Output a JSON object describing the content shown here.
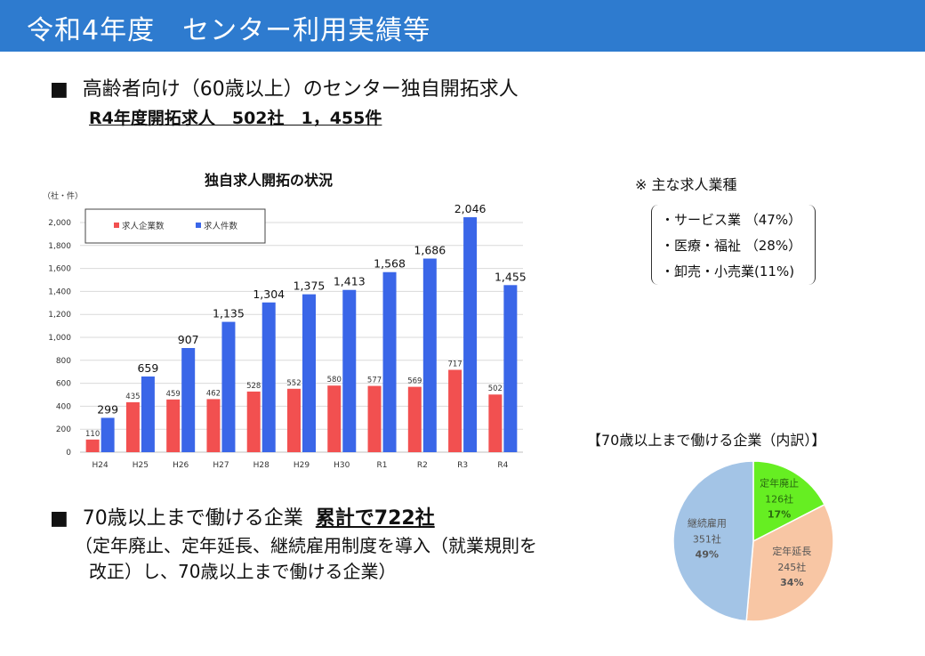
{
  "header": {
    "title": "令和4年度　センター利用実績等"
  },
  "section1": {
    "bullet": "■",
    "heading": "高齢者向け（60歳以上）のセンター独自開拓求人",
    "subheading": "R4年度開拓求人　502社　1，455件"
  },
  "notes": {
    "title": "※ 主な求人業種",
    "items": [
      "・サービス業 （47%）",
      "・医療・福祉 （28%）",
      "・卸売・小売業(11%)"
    ]
  },
  "section2": {
    "bullet": "■",
    "heading": "70歳以上まで働ける企業",
    "emphasis": "累計で722社",
    "desc_line1": "（定年廃止、定年延長、継続雇用制度を導入（就業規則を",
    "desc_line2": "改正）し、70歳以上まで働ける企業）"
  },
  "chart_data": [
    {
      "type": "bar",
      "title": "独自求人開拓の状況",
      "ylabel": "（社・件）",
      "categories": [
        "H24",
        "H25",
        "H26",
        "H27",
        "H28",
        "H29",
        "H30",
        "R1",
        "R2",
        "R3",
        "R4"
      ],
      "series": [
        {
          "name": "求人企業数",
          "color": "#f25050",
          "values": [
            110,
            435,
            459,
            462,
            528,
            552,
            580,
            577,
            569,
            717,
            502
          ]
        },
        {
          "name": "求人件数",
          "color": "#3a66e8",
          "values": [
            299,
            659,
            907,
            1135,
            1304,
            1375,
            1413,
            1568,
            1686,
            2046,
            1455
          ]
        }
      ],
      "ylim": [
        0,
        2000
      ],
      "yticks": [
        0,
        200,
        400,
        600,
        800,
        1000,
        1200,
        1400,
        1600,
        1800,
        2000
      ],
      "ytick_labels": [
        "0",
        "200",
        "400",
        "600",
        "800",
        "1,000",
        "1,200",
        "1,400",
        "1,600",
        "1,800",
        "2,000"
      ],
      "value_labels": [
        [
          "110",
          "435",
          "459",
          "462",
          "528",
          "552",
          "580",
          "577",
          "569",
          "717",
          "502"
        ],
        [
          "299",
          "659",
          "907",
          "1,135",
          "1,304",
          "1,375",
          "1,413",
          "1,568",
          "1,686",
          "2,046",
          "1,455"
        ]
      ],
      "grid": true,
      "legend": "top-left"
    },
    {
      "type": "pie",
      "title": "【70歳以上まで働ける企業（内訳）】",
      "slices": [
        {
          "label": "定年廃止",
          "count": "126社",
          "percent": "17%",
          "value": 126,
          "color": "#66ee22"
        },
        {
          "label": "定年延長",
          "count": "245社",
          "percent": "34%",
          "value": 245,
          "color": "#f8c6a4"
        },
        {
          "label": "継続雇用",
          "count": "351社",
          "percent": "49%",
          "value": 351,
          "color": "#a3c4e6"
        }
      ]
    }
  ]
}
